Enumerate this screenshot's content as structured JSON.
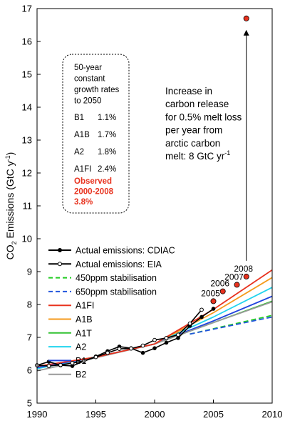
{
  "chart_data": {
    "type": "line",
    "title": "",
    "xlabel": "",
    "ylabel_main": "CO",
    "ylabel_sub": "2",
    "ylabel_rest": " Emissions (GtC y",
    "ylabel_sup": "-1",
    "ylabel_end": ")",
    "xlim": [
      1990,
      2010
    ],
    "ylim": [
      5,
      17
    ],
    "xticks": [
      1990,
      1995,
      2000,
      2005,
      2010
    ],
    "yticks": [
      5,
      6,
      7,
      8,
      9,
      10,
      11,
      12,
      13,
      14,
      15,
      16,
      17
    ],
    "grid": false,
    "series": [
      {
        "name": "Actual emissions: CDIAC",
        "color": "#000000",
        "style": "solid-filled-markers",
        "x": [
          1990,
          1991,
          1992,
          1993,
          1994,
          1995,
          1996,
          1997,
          1998,
          1999,
          2000,
          2001,
          2002,
          2003,
          2004,
          2005
        ],
        "y": [
          6.15,
          6.26,
          6.15,
          6.13,
          6.28,
          6.42,
          6.58,
          6.72,
          6.67,
          6.53,
          6.67,
          6.84,
          6.98,
          7.35,
          7.62,
          7.87
        ]
      },
      {
        "name": "Actual emissions: EIA",
        "color": "#000000",
        "style": "solid-open-markers",
        "x": [
          1990,
          1991,
          1992,
          1993,
          1994,
          1995,
          1996,
          1997,
          1998,
          1999,
          2000,
          2001,
          2002,
          2003,
          2004
        ],
        "y": [
          6.15,
          6.13,
          6.16,
          6.22,
          6.28,
          6.4,
          6.53,
          6.65,
          6.66,
          6.75,
          6.92,
          6.98,
          7.08,
          7.42,
          7.84
        ]
      },
      {
        "name": "450ppm stabilisation",
        "color": "#22cc22",
        "style": "dashed",
        "x": [
          2003,
          2010
        ],
        "y": [
          7.1,
          7.67
        ]
      },
      {
        "name": "650ppm stabilisation",
        "color": "#2255dd",
        "style": "dashed",
        "x": [
          2003,
          2010
        ],
        "y": [
          7.1,
          7.62
        ]
      },
      {
        "name": "A1FI",
        "color": "#e8321e",
        "style": "solid",
        "x": [
          1990,
          1995,
          2000,
          2005,
          2010
        ],
        "y": [
          6.12,
          6.4,
          6.8,
          7.85,
          9.05
        ]
      },
      {
        "name": "A1B",
        "color": "#f59a1c",
        "style": "solid",
        "x": [
          1990,
          1995,
          2000,
          2005,
          2010
        ],
        "y": [
          6.1,
          6.4,
          6.8,
          7.75,
          8.82
        ]
      },
      {
        "name": "A1T",
        "color": "#33c233",
        "style": "solid",
        "x": [
          1990,
          1995,
          2000,
          2005,
          2010
        ],
        "y": [
          6.1,
          6.4,
          6.8,
          7.45,
          8.1
        ]
      },
      {
        "name": "A2",
        "color": "#22d4ee",
        "style": "solid",
        "x": [
          1990,
          1995,
          2000,
          2005,
          2010
        ],
        "y": [
          6.05,
          6.4,
          6.8,
          7.62,
          8.52
        ]
      },
      {
        "name": "B1",
        "color": "#2244dd",
        "style": "solid",
        "x": [
          1990,
          1995,
          2000,
          2005,
          2010
        ],
        "y": [
          6.08,
          6.4,
          6.8,
          7.5,
          8.25
        ]
      },
      {
        "name": "B2",
        "color": "#999999",
        "style": "solid",
        "x": [
          1990,
          1995,
          2000,
          2005,
          2010
        ],
        "y": [
          5.98,
          6.38,
          6.8,
          7.45,
          8.08
        ]
      }
    ],
    "observed_points": [
      {
        "label": "2005",
        "x": 2005,
        "y": 8.1
      },
      {
        "label": "2006",
        "x": 2005.8,
        "y": 8.4
      },
      {
        "label": "2007",
        "x": 2007,
        "y": 8.6
      },
      {
        "label": "2008",
        "x": 2007.8,
        "y": 8.85
      }
    ],
    "melt_point": {
      "x": 2007.8,
      "y": 16.7
    },
    "point_color": "#e8321e",
    "annotation_lines": [
      "Increase in",
      "carbon release",
      "for 0.5% melt loss",
      "per year from",
      "arctic carbon",
      "melt: 8 GtC yr"
    ],
    "annotation_sup": "-1",
    "legend_position": "left-middle",
    "rates_box": {
      "heading": [
        "50-year",
        "constant",
        "growth rates",
        "to 2050"
      ],
      "rows": [
        {
          "name": "B1",
          "rate": "1.1%"
        },
        {
          "name": "A1B",
          "rate": "1.7%"
        },
        {
          "name": "A2",
          "rate": "1.8%"
        },
        {
          "name": "A1FI",
          "rate": "2.4%"
        }
      ],
      "observed": [
        "Observed",
        "2000-2008",
        "3.8%"
      ],
      "observed_color": "#e8321e"
    }
  }
}
